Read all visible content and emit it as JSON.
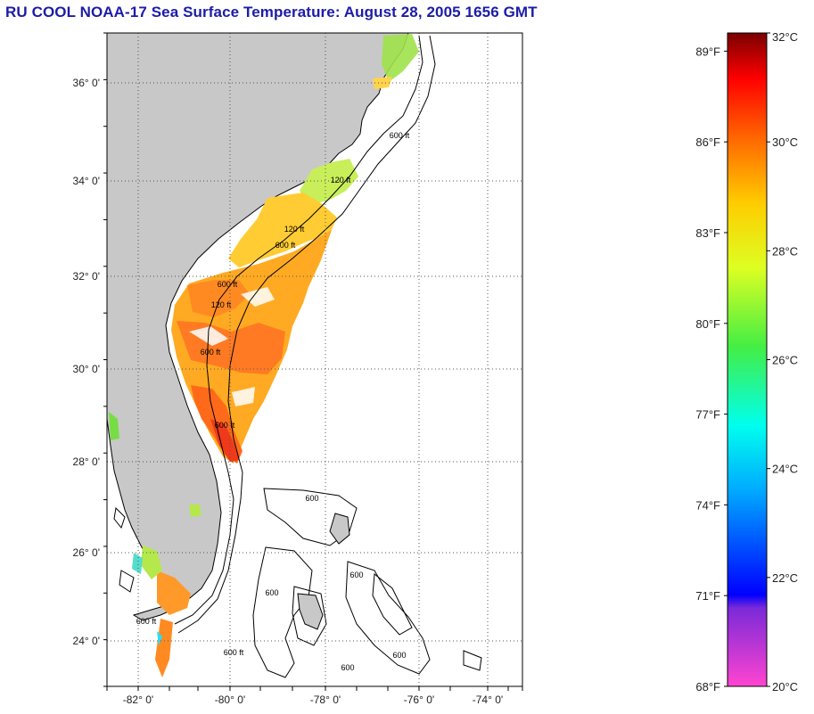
{
  "title": "RU COOL  NOAA-17  Sea Surface Temperature:  August 28, 2005 1656 GMT",
  "map": {
    "lat_labels": [
      "36° 0'",
      "34° 0'",
      "32° 0'",
      "30° 0'",
      "28° 0'",
      "26° 0'",
      "24° 0'"
    ],
    "lon_labels": [
      "-82° 0'",
      "-80° 0'",
      "-78° 0'",
      "-76° 0'",
      "-74° 0'"
    ],
    "contour_labels": [
      "600 ft",
      "120 ft",
      "600 ft",
      "120 ft",
      "600 ft",
      "600 ft",
      "120 ft",
      "600 ft",
      "600 ft",
      "600",
      "600 ft",
      "600",
      "600",
      "600",
      "600"
    ],
    "land_color": "#c8c8c8",
    "ocean_color": "#ffffff"
  },
  "colorbar": {
    "fahrenheit_labels": [
      "89°F",
      "86°F",
      "83°F",
      "80°F",
      "77°F",
      "74°F",
      "71°F",
      "68°F"
    ],
    "celsius_labels": [
      "32°C",
      "30°C",
      "28°C",
      "26°C",
      "24°C",
      "22°C",
      "20°C"
    ],
    "min_c": 20,
    "max_c": 32
  }
}
